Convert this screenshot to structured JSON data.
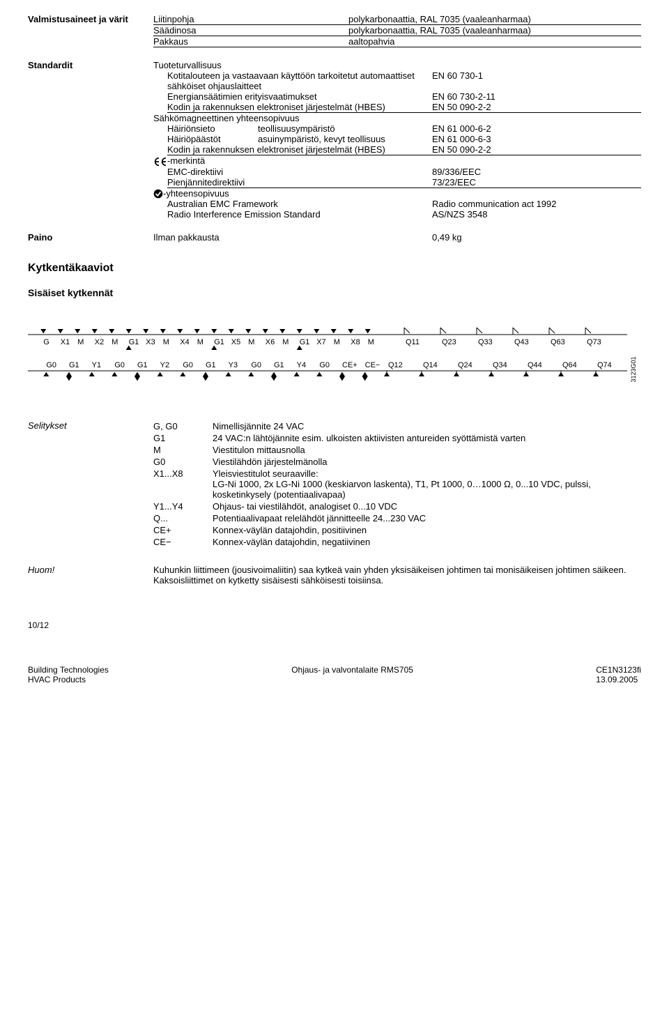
{
  "top": {
    "left_label": "Valmistusaineet ja värit",
    "rows": [
      {
        "k": "Liitinpohja",
        "v": "polykarbonaattia, RAL 7035 (vaaleanharmaa)",
        "u": true
      },
      {
        "k": "Säädinosa",
        "v": "polykarbonaattia, RAL 7035 (vaaleanharmaa)",
        "u": true
      },
      {
        "k": "Pakkaus",
        "v": "aaltopahvia",
        "u": true
      }
    ]
  },
  "standards": {
    "label": "Standardit",
    "g1_title": "Tuoteturvallisuus",
    "g1_rows": [
      {
        "k": "Kotitalouteen ja vastaavaan käyttöön tarkoitetut automaattiset sähköiset ohjauslaitteet",
        "v": "EN 60 730-1"
      },
      {
        "k": "Energiansäätimien erityisvaatimukset",
        "v": "EN 60 730-2-11"
      },
      {
        "k": "Kodin ja rakennuksen elektroniset järjestelmät (HBES)",
        "v": "EN 50 090-2-2"
      }
    ],
    "g2_title": "Sähkömagneettinen yhteensopivuus",
    "g2_rows": [
      {
        "k1": "Häiriönsieto",
        "k2": "teollisuusympäristö",
        "v": "EN 61 000-6-2"
      },
      {
        "k1": "Häiriöpäästöt",
        "k2": "asuinympäristö, kevyt teollisuus",
        "v": "EN 61 000-6-3"
      },
      {
        "k1": "Kodin ja rakennuksen elektroniset järjestelmät (HBES)",
        "k2": "",
        "v": "EN 50 090-2-2"
      }
    ],
    "g3_title": "-merkintä",
    "g3_rows": [
      {
        "k": "EMC-direktiivi",
        "v": "89/336/EEC"
      },
      {
        "k": "Pienjännitedirektiivi",
        "v": "73/23/EEC"
      }
    ],
    "g4_title": "-yhteensopivuus",
    "g4_rows": [
      {
        "k": "Australian EMC Framework",
        "v": "Radio communication act 1992"
      },
      {
        "k": "Radio Interference Emission Standard",
        "v": "AS/NZS 3548"
      }
    ]
  },
  "weight": {
    "label": "Paino",
    "k": "Ilman pakkausta",
    "v": "0,49 kg"
  },
  "kk_title": "Kytkentäkaaviot",
  "sk_title": "Sisäiset kytkennät",
  "diagram": {
    "row1": [
      "G",
      "X1",
      "M",
      "X2",
      "M",
      "G1",
      "X3",
      "M",
      "X4",
      "M",
      "G1",
      "X5",
      "M",
      "X6",
      "M",
      "G1",
      "X7",
      "M",
      "X8",
      "M",
      "Q11",
      "Q23",
      "Q33",
      "Q43",
      "Q63",
      "Q73"
    ],
    "row2": [
      "G0",
      "G1",
      "Y1",
      "G0",
      "G1",
      "Y2",
      "G0",
      "G1",
      "Y3",
      "G0",
      "G1",
      "Y4",
      "G0",
      "CE+",
      "CE−",
      "Q12",
      "Q14",
      "Q24",
      "Q34",
      "Q44",
      "Q64",
      "Q74"
    ],
    "side_label": "3123G01"
  },
  "defs": {
    "label": "Selitykset",
    "items": [
      {
        "k": "G, G0",
        "v": "Nimellisjännite 24 VAC"
      },
      {
        "k": "G1",
        "v": "24 VAC:n lähtöjännite esim. ulkoisten aktiivisten antureiden syöttämistä varten"
      },
      {
        "k": "M",
        "v": "Viestitulon mittausnolla"
      },
      {
        "k": "G0",
        "v": "Viestilähdön järjestelmänolla"
      },
      {
        "k": "X1...X8",
        "v": "Yleisviestitulot seuraaville:\nLG-Ni 1000, 2x LG-Ni 1000 (keskiarvon laskenta), T1, Pt 1000, 0…1000 Ω, 0...10 VDC, pulssi, kosketinkysely (potentiaalivapaa)"
      },
      {
        "k": "Y1...Y4",
        "v": "Ohjaus- tai viestilähdöt, analogiset 0...10 VDC"
      },
      {
        "k": "Q...",
        "v": "Potentiaalivapaat relelähdöt jännitteelle 24...230 VAC"
      },
      {
        "k": "CE+",
        "v": "Konnex-väylän datajohdin, positiivinen"
      },
      {
        "k": "CE−",
        "v": "Konnex-väylän datajohdin, negatiivinen"
      }
    ]
  },
  "note": {
    "label": "Huom!",
    "text": "Kuhunkin liittimeen (jousivoimaliitin) saa kytkeä vain yhden yksisäikeisen johtimen tai monisäikeisen johtimen säikeen. Kaksoisliittimet on kytketty sisäisesti sähköisesti toisiinsa."
  },
  "footer": {
    "page": "10/12",
    "left1": "Building Technologies",
    "left2": "HVAC Products",
    "center": "Ohjaus- ja valvontalaite RMS705",
    "right1": "CE1N3123fi",
    "right2": "13.09.2005"
  }
}
